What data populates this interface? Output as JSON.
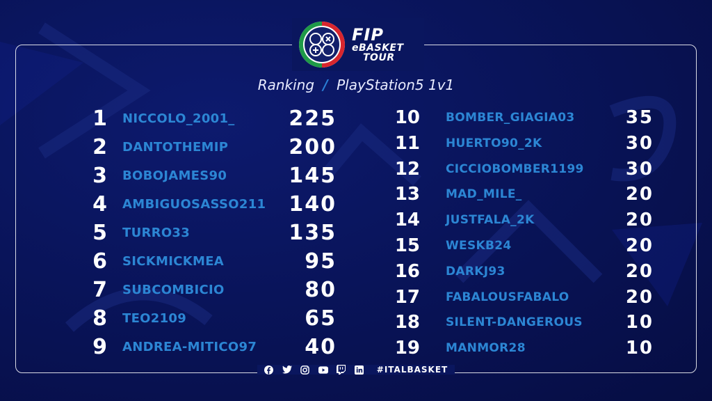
{
  "logo": {
    "line1": "FIP",
    "line2": "eBASKET",
    "line3": "TOUR"
  },
  "subtitle": {
    "left": "Ranking",
    "separator": "/",
    "right": "PlayStation5 1v1"
  },
  "left_rows": [
    {
      "rank": "1",
      "name": "NICCOLO_2001_",
      "points": "225"
    },
    {
      "rank": "2",
      "name": "DANTOTHEMIP",
      "points": "200"
    },
    {
      "rank": "3",
      "name": "BOBOJAMES90",
      "points": "145"
    },
    {
      "rank": "4",
      "name": "AMBIGUOSASSO211",
      "points": "140"
    },
    {
      "rank": "5",
      "name": "TURRO33",
      "points": "135"
    },
    {
      "rank": "6",
      "name": "SICKMICKMEA",
      "points": "95"
    },
    {
      "rank": "7",
      "name": "SUBCOMBICIO",
      "points": "80"
    },
    {
      "rank": "8",
      "name": "TEO2109",
      "points": "65"
    },
    {
      "rank": "9",
      "name": "ANDREA-MITICO97",
      "points": "40"
    }
  ],
  "right_rows": [
    {
      "rank": "10",
      "name": "BOMBER_GIAGIA03",
      "points": "35"
    },
    {
      "rank": "11",
      "name": "HUERTO90_2K",
      "points": "30"
    },
    {
      "rank": "12",
      "name": "CICCIOBOMBER1199",
      "points": "30"
    },
    {
      "rank": "13",
      "name": "MAD_MILE_",
      "points": "20"
    },
    {
      "rank": "14",
      "name": "JUSTFALA_2K",
      "points": "20"
    },
    {
      "rank": "15",
      "name": "WESKB24",
      "points": "20"
    },
    {
      "rank": "16",
      "name": "DARKJ93",
      "points": "20"
    },
    {
      "rank": "17",
      "name": "FABALOUSFABALO",
      "points": "20"
    },
    {
      "rank": "18",
      "name": "SILENT-DANGEROUS",
      "points": "10"
    },
    {
      "rank": "19",
      "name": "MANMOR28",
      "points": "10"
    }
  ],
  "footer": {
    "social_icons": [
      "facebook-icon",
      "twitter-icon",
      "instagram-icon",
      "youtube-icon",
      "twitch-icon",
      "linkedin-icon"
    ],
    "hashtag": "#ITALBASKET"
  },
  "colors": {
    "background": "#09145a",
    "name_blue": "#2c86d4",
    "accent_green": "#1f9a48",
    "accent_red": "#d8262e"
  }
}
